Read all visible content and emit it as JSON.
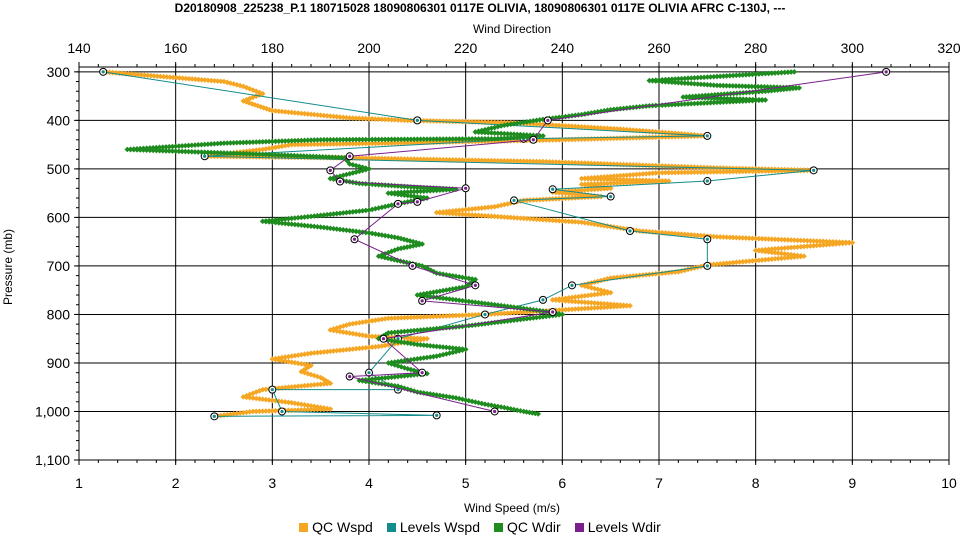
{
  "chart_data": {
    "type": "scatter",
    "title": "D20180908_225238_P.1 180715028 18090806301 0117E OLIVIA, 18090806301 0117E OLIVIA AFRC C-130J, ---",
    "xlabel": "Wind Speed (m/s)",
    "x2label": "Wind Direction",
    "ylabel": "Pressure (mb)",
    "xlim": [
      1,
      10
    ],
    "x2lim": [
      140,
      320
    ],
    "ylim": [
      1100,
      290
    ],
    "xticks": [
      "1",
      "2",
      "3",
      "4",
      "5",
      "6",
      "7",
      "8",
      "9",
      "10"
    ],
    "x2ticks": [
      "140",
      "160",
      "180",
      "200",
      "220",
      "240",
      "260",
      "280",
      "300",
      "320"
    ],
    "yticks": [
      {
        "v": 300,
        "label": "300"
      },
      {
        "v": 400,
        "label": "400"
      },
      {
        "v": 500,
        "label": "500"
      },
      {
        "v": 600,
        "label": "600"
      },
      {
        "v": 700,
        "label": "700"
      },
      {
        "v": 800,
        "label": "800"
      },
      {
        "v": 900,
        "label": "900"
      },
      {
        "v": 1000,
        "label": "1,000"
      },
      {
        "v": 1100,
        "label": "1,100"
      }
    ],
    "grid": true,
    "legend_position": "bottom",
    "series": [
      {
        "name": "QC Wspd",
        "axis": "x",
        "color": "#f5a623",
        "style": "dense",
        "points": [
          [
            1.25,
            300
          ],
          [
            2.5,
            320
          ],
          [
            2.7,
            330
          ],
          [
            2.9,
            345
          ],
          [
            2.7,
            360
          ],
          [
            3.0,
            380
          ],
          [
            3.8,
            395
          ],
          [
            4.4,
            400
          ],
          [
            5.5,
            405
          ],
          [
            6.6,
            418
          ],
          [
            7.5,
            432
          ],
          [
            6.0,
            440
          ],
          [
            4.2,
            447
          ],
          [
            3.2,
            450
          ],
          [
            2.9,
            460
          ],
          [
            2.3,
            474
          ],
          [
            4.0,
            478
          ],
          [
            5.8,
            485
          ],
          [
            7.6,
            498
          ],
          [
            8.6,
            503
          ],
          [
            7.0,
            508
          ],
          [
            6.2,
            520
          ],
          [
            7.1,
            525
          ],
          [
            6.2,
            532
          ],
          [
            6.5,
            540
          ],
          [
            5.9,
            548
          ],
          [
            6.4,
            557
          ],
          [
            5.6,
            565
          ],
          [
            5.3,
            578
          ],
          [
            4.7,
            590
          ],
          [
            6.2,
            610
          ],
          [
            6.8,
            628
          ],
          [
            7.6,
            640
          ],
          [
            9.0,
            652
          ],
          [
            8.0,
            668
          ],
          [
            8.5,
            680
          ],
          [
            7.5,
            698
          ],
          [
            7.2,
            712
          ],
          [
            6.5,
            725
          ],
          [
            6.2,
            740
          ],
          [
            6.5,
            755
          ],
          [
            5.9,
            770
          ],
          [
            6.7,
            782
          ],
          [
            5.8,
            793
          ],
          [
            5.2,
            800
          ],
          [
            4.2,
            808
          ],
          [
            3.8,
            820
          ],
          [
            3.6,
            832
          ],
          [
            4.0,
            845
          ],
          [
            4.6,
            850
          ],
          [
            4.1,
            866
          ],
          [
            3.4,
            880
          ],
          [
            3.0,
            892
          ],
          [
            3.4,
            905
          ],
          [
            3.3,
            918
          ],
          [
            3.5,
            930
          ],
          [
            3.6,
            942
          ],
          [
            2.9,
            955
          ],
          [
            2.7,
            970
          ],
          [
            3.2,
            982
          ],
          [
            3.6,
            995
          ],
          [
            2.8,
            1000
          ],
          [
            2.4,
            1010
          ]
        ]
      },
      {
        "name": "Levels Wspd",
        "axis": "x",
        "color": "#138c8c",
        "style": "markers",
        "points": [
          [
            1.25,
            300
          ],
          [
            4.5,
            400
          ],
          [
            7.5,
            432
          ],
          [
            5.6,
            438
          ],
          [
            2.3,
            474
          ],
          [
            8.6,
            503
          ],
          [
            7.5,
            525
          ],
          [
            5.9,
            542
          ],
          [
            6.5,
            557
          ],
          [
            5.5,
            565
          ],
          [
            6.7,
            628
          ],
          [
            7.5,
            645
          ],
          [
            7.5,
            700
          ],
          [
            6.1,
            740
          ],
          [
            5.8,
            770
          ],
          [
            5.2,
            800
          ],
          [
            4.3,
            850
          ],
          [
            4.0,
            920
          ],
          [
            4.3,
            955
          ],
          [
            3.0,
            955
          ],
          [
            3.1,
            1000
          ],
          [
            4.7,
            1008
          ],
          [
            2.4,
            1010
          ]
        ]
      },
      {
        "name": "QC Wdir",
        "axis": "x2",
        "color": "#1f8c1f",
        "style": "dense",
        "points": [
          [
            288,
            300
          ],
          [
            258,
            318
          ],
          [
            272,
            328
          ],
          [
            289,
            333
          ],
          [
            282,
            340
          ],
          [
            265,
            352
          ],
          [
            282,
            358
          ],
          [
            268,
            365
          ],
          [
            258,
            370
          ],
          [
            250,
            378
          ],
          [
            244,
            388
          ],
          [
            236,
            398
          ],
          [
            228,
            410
          ],
          [
            222,
            424
          ],
          [
            236,
            432
          ],
          [
            226,
            438
          ],
          [
            190,
            440
          ],
          [
            170,
            447
          ],
          [
            150,
            460
          ],
          [
            178,
            470
          ],
          [
            195,
            477
          ],
          [
            196,
            490
          ],
          [
            200,
            500
          ],
          [
            192,
            520
          ],
          [
            198,
            530
          ],
          [
            210,
            538
          ],
          [
            218,
            542
          ],
          [
            204,
            550
          ],
          [
            212,
            560
          ],
          [
            206,
            572
          ],
          [
            200,
            585
          ],
          [
            188,
            598
          ],
          [
            178,
            608
          ],
          [
            190,
            620
          ],
          [
            200,
            632
          ],
          [
            206,
            642
          ],
          [
            211,
            655
          ],
          [
            206,
            665
          ],
          [
            202,
            680
          ],
          [
            211,
            700
          ],
          [
            214,
            715
          ],
          [
            222,
            728
          ],
          [
            220,
            743
          ],
          [
            210,
            760
          ],
          [
            218,
            770
          ],
          [
            226,
            780
          ],
          [
            236,
            793
          ],
          [
            240,
            800
          ],
          [
            230,
            812
          ],
          [
            220,
            824
          ],
          [
            204,
            838
          ],
          [
            202,
            850
          ],
          [
            210,
            862
          ],
          [
            220,
            872
          ],
          [
            214,
            886
          ],
          [
            204,
            900
          ],
          [
            208,
            912
          ],
          [
            212,
            922
          ],
          [
            198,
            936
          ],
          [
            206,
            948
          ],
          [
            210,
            960
          ],
          [
            218,
            972
          ],
          [
            224,
            985
          ],
          [
            228,
            992
          ],
          [
            232,
            1000
          ],
          [
            235,
            1005
          ]
        ]
      },
      {
        "name": "Levels Wdir",
        "axis": "x2",
        "color": "#7a1f8c",
        "style": "markers",
        "points": [
          [
            307,
            300
          ],
          [
            237,
            400
          ],
          [
            234,
            440
          ],
          [
            196,
            474
          ],
          [
            192,
            503
          ],
          [
            194,
            526
          ],
          [
            220,
            540
          ],
          [
            210,
            568
          ],
          [
            206,
            572
          ],
          [
            197,
            645
          ],
          [
            209,
            700
          ],
          [
            222,
            740
          ],
          [
            211,
            772
          ],
          [
            238,
            795
          ],
          [
            203,
            850
          ],
          [
            211,
            920
          ],
          [
            196,
            928
          ],
          [
            226,
            1000
          ]
        ]
      }
    ]
  }
}
